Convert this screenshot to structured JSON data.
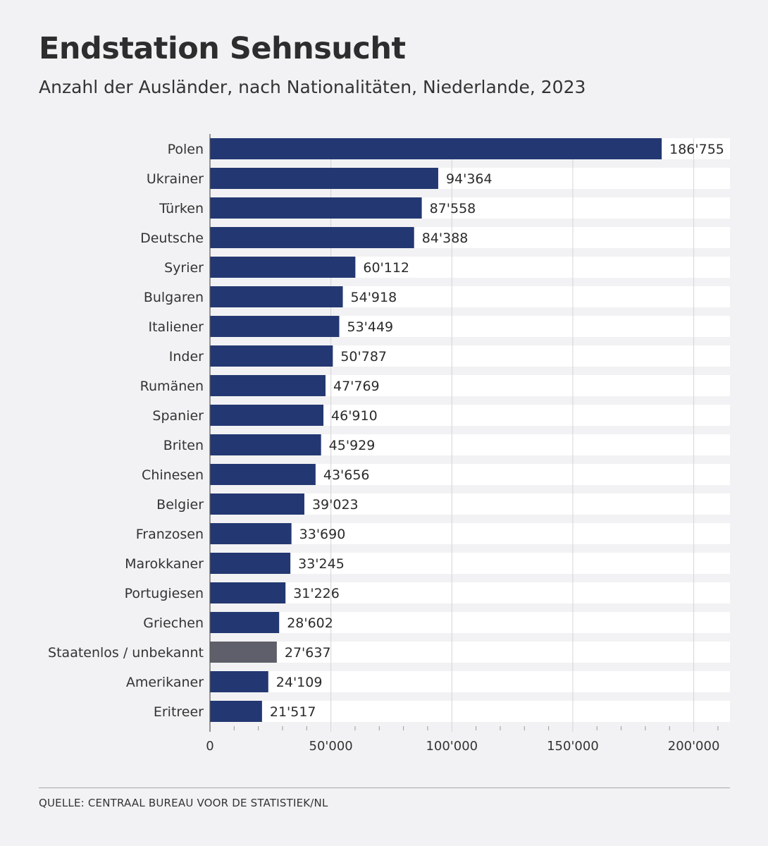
{
  "title": "Endstation Sehnsucht",
  "subtitle": "Anzahl der Ausländer, nach Nationalitäten, Niederlande, 2023",
  "source": "QUELLE: CENTRAAL BUREAU VOOR DE STATISTIEK/NL",
  "colors": {
    "bar": "#233872",
    "highlight": "#5f5f6b",
    "stripe": "#ffffff",
    "grid": "#d4d4d8",
    "axis": "#555555"
  },
  "chart_data": {
    "type": "bar",
    "orientation": "horizontal",
    "title": "Endstation Sehnsucht",
    "subtitle": "Anzahl der Ausländer, nach Nationalitäten, Niederlande, 2023",
    "xlabel": "",
    "ylabel": "",
    "xlim": [
      0,
      215000
    ],
    "grid": true,
    "x_ticks": [
      0,
      50000,
      100000,
      150000,
      200000
    ],
    "x_tick_labels": [
      "0",
      "50'000",
      "100'000",
      "150'000",
      "200'000"
    ],
    "categories": [
      "Polen",
      "Ukrainer",
      "Türken",
      "Deutsche",
      "Syrier",
      "Bulgaren",
      "Italiener",
      "Inder",
      "Rumänen",
      "Spanier",
      "Briten",
      "Chinesen",
      "Belgier",
      "Franzosen",
      "Marokkaner",
      "Portugiesen",
      "Griechen",
      "Staatenlos / unbekannt",
      "Amerikaner",
      "Eritreer"
    ],
    "values": [
      186755,
      94364,
      87558,
      84388,
      60112,
      54918,
      53449,
      50787,
      47769,
      46910,
      45929,
      43656,
      39023,
      33690,
      33245,
      31226,
      28602,
      27637,
      24109,
      21517
    ],
    "value_labels": [
      "186'755",
      "94'364",
      "87'558",
      "84'388",
      "60'112",
      "54'918",
      "53'449",
      "50'787",
      "47'769",
      "46'910",
      "45'929",
      "43'656",
      "39'023",
      "33'690",
      "33'245",
      "31'226",
      "28'602",
      "27'637",
      "24'109",
      "21'517"
    ],
    "highlight": [
      "Staatenlos / unbekannt"
    ]
  }
}
